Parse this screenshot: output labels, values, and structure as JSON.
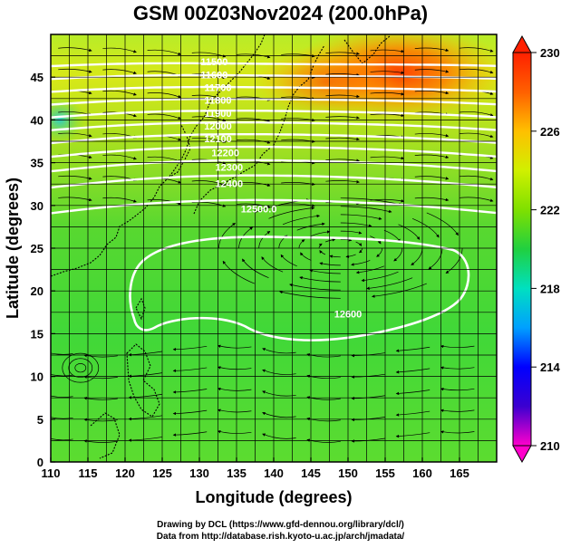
{
  "title": "GSM 00Z03Nov2024 (200.0hPa)",
  "x_axis": {
    "label": "Longitude (degrees)",
    "ticks": [
      110,
      115,
      120,
      125,
      130,
      135,
      140,
      145,
      150,
      155,
      160,
      165
    ],
    "range": [
      110,
      170
    ]
  },
  "y_axis": {
    "label": "Latitude  (degrees)",
    "ticks": [
      0,
      5,
      10,
      15,
      20,
      25,
      30,
      35,
      40,
      45
    ],
    "range": [
      0,
      50
    ]
  },
  "colorbar": {
    "ticks": [
      210,
      214,
      218,
      222,
      226,
      230
    ],
    "range": [
      210,
      230
    ],
    "colors": [
      "#ff00cc",
      "#3b00d0",
      "#0000ff",
      "#00a0ff",
      "#00e0c0",
      "#20d040",
      "#7fe000",
      "#d0f000",
      "#ffc000",
      "#ff6000",
      "#ff2000"
    ]
  },
  "contours": [
    {
      "label": "11500",
      "lat": 46.8,
      "lon_label": 132
    },
    {
      "label": "11600",
      "lat": 45.3,
      "lon_label": 132
    },
    {
      "label": "11700",
      "lat": 43.8,
      "lon_label": 132.5
    },
    {
      "label": "11800",
      "lat": 42.3,
      "lon_label": 132.5
    },
    {
      "label": "11900",
      "lat": 40.8,
      "lon_label": 132.5
    },
    {
      "label": "12000",
      "lat": 39.3,
      "lon_label": 132.5
    },
    {
      "label": "12100",
      "lat": 37.8,
      "lon_label": 132.5
    },
    {
      "label": "12200",
      "lat": 36.2,
      "lon_label": 133.5
    },
    {
      "label": "12300",
      "lat": 34.5,
      "lon_label": 134
    },
    {
      "label": "12400",
      "lat": 32.6,
      "lon_label": 134
    },
    {
      "label": "12500.0",
      "lat": 29.6,
      "lon_label": 138
    },
    {
      "label": "12600",
      "lat": 17.3,
      "lon_label": 150
    }
  ],
  "credit": [
    "Drawing by DCL (https://www.gfd-dennou.org/library/dcl/)",
    "Data from http://database.rish.kyoto-u.ac.jp/arch/jmadata/"
  ]
}
